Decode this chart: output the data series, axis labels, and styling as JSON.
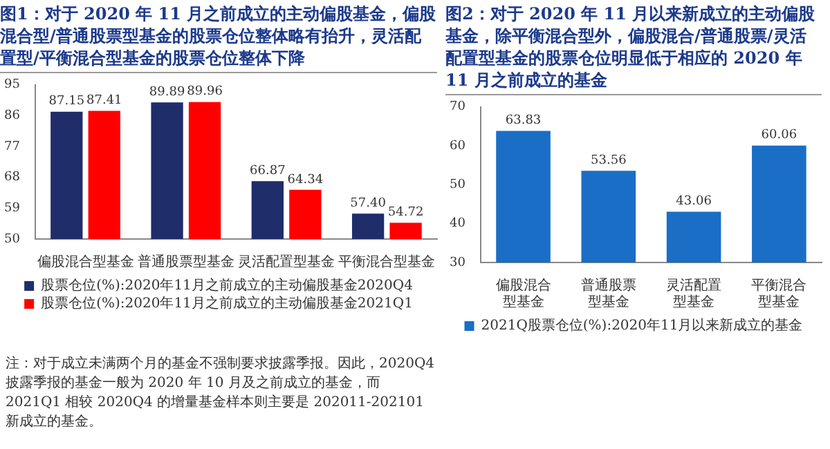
{
  "chart_data": [
    {
      "type": "bar",
      "title": "图1：对于 2020 年 11 月之前成立的主动偏股基金，偏股混合型/普通股票型基金的股票仓位整体略有抬升，灵活配置型/平衡混合型基金的股票仓位整体下降",
      "categories": [
        "偏股混合型基金",
        "普通股票型基金",
        "灵活配置型基金",
        "平衡混合型基金"
      ],
      "series": [
        {
          "name": "股票仓位(%):2020年11月之前成立的主动偏股基金2020Q4",
          "color": "#1f2d6b",
          "values": [
            87.15,
            89.89,
            66.87,
            57.4
          ],
          "value_labels": [
            "87.15",
            "89.89",
            "66.87",
            "57.40"
          ]
        },
        {
          "name": "股票仓位(%):2020年11月之前成立的主动偏股基金2021Q1",
          "color": "#ff0000",
          "values": [
            87.41,
            89.96,
            64.34,
            54.72
          ],
          "value_labels": [
            "87.41",
            "89.96",
            "64.34",
            "54.72"
          ]
        }
      ],
      "ylim": [
        50,
        95
      ],
      "yticks": [
        50,
        59,
        68,
        77,
        86,
        95
      ],
      "grid": false,
      "legend": "bottom",
      "annotations": [
        "注：对于成立未满两个月的基金不强制要求披露季报。因此，2020Q4 披露季报的基金一般为 2020 年 10 月及之前成立的基金，而 2021Q1 相较 2020Q4 的增量基金样本则主要是 202011-202101 新成立的基金。"
      ]
    },
    {
      "type": "bar",
      "title": "图2：对于 2020 年 11 月以来新成立的主动偏股基金，除平衡混合型外，偏股混合/普通股票/灵活配置型基金的股票仓位明显低于相应的 2020 年 11 月之前成立的基金",
      "categories": [
        "偏股混合型基金",
        "普通股票型基金",
        "灵活配置型基金",
        "平衡混合型基金"
      ],
      "series": [
        {
          "name": "2021Q股票仓位(%):2020年11月以来新成立的基金",
          "color": "#1a6ec6",
          "values": [
            63.83,
            53.56,
            43.06,
            60.06
          ],
          "value_labels": [
            "63.83",
            "53.56",
            "43.06",
            "60.06"
          ]
        }
      ],
      "ylim": [
        30,
        70
      ],
      "yticks": [
        30,
        40,
        50,
        60,
        70
      ],
      "grid": false,
      "legend": "bottom"
    }
  ]
}
